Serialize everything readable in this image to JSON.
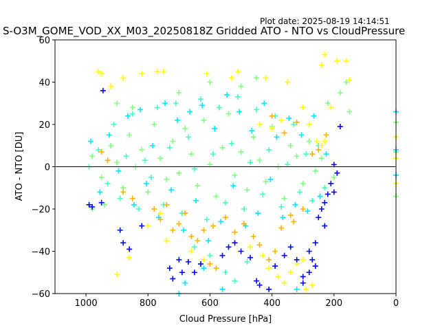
{
  "plot_date": "Plot date: 2025-08-19 14:14:51",
  "chart_data": {
    "type": "scatter",
    "title": "S-O3M_GOME_VOD_XX_M03_20250818Z Gridded ATO - NTO vs CloudPressure",
    "xlabel": "Cloud Pressure [hPa]",
    "ylabel": "ATO - NTO [DU]",
    "xlim": [
      1100,
      0
    ],
    "ylim": [
      -60,
      60
    ],
    "xticks": [
      1000,
      800,
      600,
      400,
      200,
      0
    ],
    "yticks": [
      -60,
      -40,
      -20,
      0,
      20,
      40,
      60
    ],
    "reference_line_y": 0,
    "marker": "plus",
    "grid": false,
    "legend": "none",
    "colors": {
      "blue": "#0000ff",
      "cyan": "#00e5ff",
      "aqua_green": "#40ffc0",
      "light_green": "#80ff80",
      "yellow": "#ffff00",
      "orange": "#ffb000"
    },
    "series": [
      {
        "color": "#80ff80",
        "points": [
          [
            980,
            5
          ],
          [
            950,
            -5
          ],
          [
            920,
            10
          ],
          [
            900,
            2
          ],
          [
            880,
            -10
          ],
          [
            860,
            15
          ],
          [
            840,
            0
          ],
          [
            820,
            8
          ],
          [
            800,
            -12
          ],
          [
            780,
            20
          ],
          [
            760,
            4
          ],
          [
            740,
            -6
          ],
          [
            720,
            12
          ],
          [
            700,
            -3
          ],
          [
            680,
            18
          ],
          [
            660,
            6
          ],
          [
            640,
            -9
          ],
          [
            620,
            22
          ],
          [
            600,
            1
          ],
          [
            580,
            -14
          ],
          [
            560,
            9
          ],
          [
            540,
            25
          ],
          [
            520,
            -4
          ],
          [
            500,
            7
          ],
          [
            480,
            -11
          ],
          [
            460,
            14
          ],
          [
            440,
            3
          ],
          [
            420,
            -7
          ],
          [
            400,
            19
          ],
          [
            380,
            0
          ],
          [
            360,
            -15
          ],
          [
            340,
            10
          ],
          [
            320,
            5
          ],
          [
            300,
            -8
          ],
          [
            280,
            12
          ],
          [
            260,
            -2
          ],
          [
            240,
            4
          ],
          [
            220,
            30
          ],
          [
            200,
            -5
          ],
          [
            180,
            35
          ],
          [
            160,
            40
          ],
          [
            150,
            26
          ],
          [
            900,
            30
          ],
          [
            850,
            28
          ],
          [
            700,
            35
          ],
          [
            600,
            40
          ],
          [
            500,
            38
          ],
          [
            450,
            42
          ],
          [
            980,
            -20
          ],
          [
            940,
            -18
          ]
        ]
      },
      {
        "color": "#40ffc0",
        "points": [
          [
            990,
            0
          ],
          [
            960,
            8
          ],
          [
            930,
            -8
          ],
          [
            910,
            20
          ],
          [
            890,
            -15
          ],
          [
            870,
            5
          ],
          [
            850,
            25
          ],
          [
            830,
            -20
          ],
          [
            810,
            3
          ],
          [
            790,
            -5
          ],
          [
            770,
            28
          ],
          [
            750,
            -18
          ],
          [
            730,
            9
          ],
          [
            710,
            30
          ],
          [
            690,
            -22
          ],
          [
            670,
            14
          ],
          [
            650,
            -1
          ],
          [
            630,
            32
          ],
          [
            610,
            -25
          ],
          [
            590,
            6
          ],
          [
            570,
            28
          ],
          [
            550,
            -17
          ],
          [
            530,
            11
          ],
          [
            510,
            33
          ],
          [
            490,
            -20
          ],
          [
            470,
            2
          ],
          [
            450,
            27
          ],
          [
            430,
            -13
          ],
          [
            410,
            8
          ],
          [
            390,
            24
          ],
          [
            370,
            -19
          ],
          [
            350,
            1
          ],
          [
            330,
            20
          ],
          [
            310,
            -12
          ],
          [
            290,
            6
          ],
          [
            270,
            -16
          ],
          [
            250,
            10
          ],
          [
            230,
            -10
          ],
          [
            550,
            -50
          ],
          [
            520,
            -54
          ],
          [
            480,
            -45
          ],
          [
            600,
            -42
          ],
          [
            650,
            -38
          ]
        ]
      },
      {
        "color": "#00e5ff",
        "points": [
          [
            985,
            12
          ],
          [
            955,
            -12
          ],
          [
            925,
            15
          ],
          [
            895,
            -2
          ],
          [
            865,
            24
          ],
          [
            845,
            -18
          ],
          [
            825,
            27
          ],
          [
            805,
            -8
          ],
          [
            785,
            10
          ],
          [
            765,
            -24
          ],
          [
            745,
            30
          ],
          [
            725,
            -11
          ],
          [
            705,
            22
          ],
          [
            685,
            -30
          ],
          [
            665,
            26
          ],
          [
            645,
            -16
          ],
          [
            625,
            29
          ],
          [
            605,
            -35
          ],
          [
            585,
            18
          ],
          [
            565,
            -26
          ],
          [
            545,
            34
          ],
          [
            525,
            -9
          ],
          [
            505,
            26
          ],
          [
            485,
            -28
          ],
          [
            465,
            17
          ],
          [
            445,
            -22
          ],
          [
            425,
            30
          ],
          [
            405,
            -6
          ],
          [
            385,
            14
          ],
          [
            365,
            -24
          ],
          [
            345,
            23
          ],
          [
            325,
            -18
          ],
          [
            305,
            15
          ],
          [
            285,
            -21
          ],
          [
            265,
            24
          ],
          [
            245,
            -14
          ],
          [
            225,
            6
          ],
          [
            680,
            -55
          ],
          [
            620,
            -48
          ],
          [
            560,
            -58
          ],
          [
            700,
            -60
          ],
          [
            320,
            -58
          ]
        ]
      },
      {
        "color": "#ffff00",
        "points": [
          [
            960,
            45
          ],
          [
            950,
            44
          ],
          [
            920,
            38
          ],
          [
            880,
            42
          ],
          [
            820,
            44
          ],
          [
            770,
            45
          ],
          [
            750,
            45
          ],
          [
            610,
            44
          ],
          [
            530,
            42
          ],
          [
            510,
            45
          ],
          [
            420,
            42
          ],
          [
            350,
            40
          ],
          [
            240,
            48
          ],
          [
            230,
            53
          ],
          [
            190,
            50
          ],
          [
            160,
            50
          ],
          [
            150,
            41
          ],
          [
            210,
            28
          ],
          [
            240,
            10
          ],
          [
            255,
            12
          ],
          [
            900,
            -51
          ],
          [
            860,
            -43
          ],
          [
            800,
            -28
          ],
          [
            760,
            -22
          ],
          [
            740,
            -35
          ],
          [
            660,
            -40
          ],
          [
            620,
            -44
          ],
          [
            470,
            -38
          ],
          [
            430,
            -42
          ],
          [
            410,
            -48
          ],
          [
            380,
            -52
          ],
          [
            360,
            -55
          ],
          [
            340,
            -50
          ],
          [
            320,
            -46
          ],
          [
            300,
            -44
          ],
          [
            290,
            -58
          ],
          [
            270,
            -56
          ],
          [
            440,
            20
          ],
          [
            400,
            18
          ],
          [
            370,
            22
          ],
          [
            300,
            28
          ],
          [
            280,
            20
          ],
          [
            230,
            12
          ]
        ]
      },
      {
        "color": "#ffb000",
        "points": [
          [
            780,
            -20
          ],
          [
            760,
            -25
          ],
          [
            740,
            -18
          ],
          [
            720,
            -30
          ],
          [
            700,
            -27
          ],
          [
            680,
            -22
          ],
          [
            660,
            -33
          ],
          [
            640,
            -35
          ],
          [
            620,
            -30
          ],
          [
            590,
            -28
          ],
          [
            550,
            -24
          ],
          [
            520,
            -31
          ],
          [
            490,
            -27
          ],
          [
            460,
            -33
          ],
          [
            440,
            -37
          ],
          [
            410,
            -44
          ],
          [
            390,
            -40
          ],
          [
            370,
            -29
          ],
          [
            340,
            -23
          ],
          [
            330,
            -26
          ],
          [
            300,
            -20
          ],
          [
            270,
            6
          ],
          [
            250,
            8
          ],
          [
            225,
            15
          ],
          [
            600,
            -46
          ],
          [
            580,
            -48
          ],
          [
            850,
            -15
          ],
          [
            880,
            -12
          ],
          [
            950,
            7
          ],
          [
            930,
            3
          ],
          [
            400,
            24
          ],
          [
            360,
            16
          ],
          [
            320,
            21
          ]
        ]
      },
      {
        "color": "#0000ff",
        "points": [
          [
            945,
            36
          ],
          [
            990,
            -18
          ],
          [
            980,
            -19
          ],
          [
            950,
            -17
          ],
          [
            890,
            -30
          ],
          [
            880,
            -36
          ],
          [
            860,
            -39
          ],
          [
            820,
            -28
          ],
          [
            730,
            -48
          ],
          [
            720,
            -53
          ],
          [
            700,
            -44
          ],
          [
            690,
            -50
          ],
          [
            670,
            -45
          ],
          [
            650,
            -50
          ],
          [
            630,
            -46
          ],
          [
            560,
            -42
          ],
          [
            540,
            -38
          ],
          [
            520,
            -36
          ],
          [
            500,
            -40
          ],
          [
            470,
            -43
          ],
          [
            450,
            -54
          ],
          [
            440,
            -56
          ],
          [
            410,
            -58
          ],
          [
            390,
            -47
          ],
          [
            360,
            -42
          ],
          [
            340,
            -38
          ],
          [
            320,
            -44
          ],
          [
            300,
            -52
          ],
          [
            280,
            -40
          ],
          [
            270,
            -44
          ],
          [
            260,
            -47
          ],
          [
            250,
            -24
          ],
          [
            240,
            -20
          ],
          [
            230,
            -17
          ],
          [
            220,
            -13
          ],
          [
            210,
            -8
          ],
          [
            200,
            -12
          ],
          [
            200,
            1
          ],
          [
            190,
            -3
          ],
          [
            180,
            19
          ],
          [
            230,
            -28
          ],
          [
            260,
            -36
          ],
          [
            280,
            -50
          ],
          [
            300,
            -55
          ]
        ]
      },
      {
        "color": "#80ff80",
        "points": [
          [
            0,
            7
          ],
          [
            0,
            -14
          ],
          [
            0,
            21
          ]
        ]
      },
      {
        "color": "#00e5ff",
        "points": [
          [
            0,
            26
          ],
          [
            0,
            -4
          ],
          [
            0,
            8
          ]
        ]
      },
      {
        "color": "#ffff00",
        "points": [
          [
            0,
            14
          ],
          [
            0,
            -8
          ],
          [
            0,
            4
          ]
        ]
      }
    ]
  }
}
